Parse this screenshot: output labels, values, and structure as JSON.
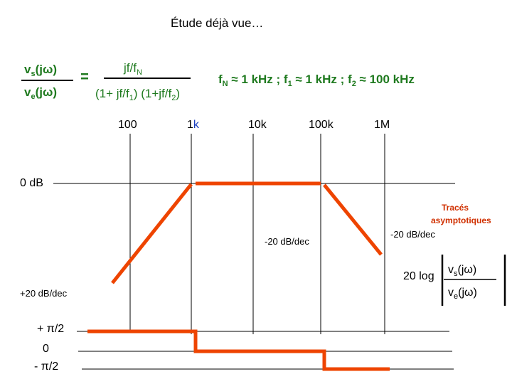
{
  "title": "Étude déjà vue…",
  "formula": {
    "lhs_num": "vs(jω)",
    "lhs_den": "ve(jω)",
    "equals": "=",
    "rhs_num": "jf/fN",
    "rhs_den": "(1+ jf/f1) (1+jf/f2)"
  },
  "parameters": "fN ≈ 1 kHz ; f1 ≈ 1 kHz ; f2 ≈ 100 kHz",
  "freq_labels": [
    "100",
    "1k",
    "10k",
    "100k",
    "1M"
  ],
  "gain_axis_label": "0 dB",
  "slope_labels": {
    "rising": "+20 dB/dec",
    "falling_mid": "-20 dB/dec",
    "falling_right": "-20 dB/dec"
  },
  "trace_note": [
    "Tracés",
    "asymptotiques"
  ],
  "gain_formula": {
    "prefix": "20 log",
    "num": "vs(jω)",
    "den": "ve(jω)"
  },
  "phase_labels": [
    "+ π/2",
    "0",
    "- π/2"
  ],
  "colors": {
    "trace": "#ee4400",
    "formula": "#1f7a1f",
    "highlight_blue": "#1a3fbf"
  }
}
